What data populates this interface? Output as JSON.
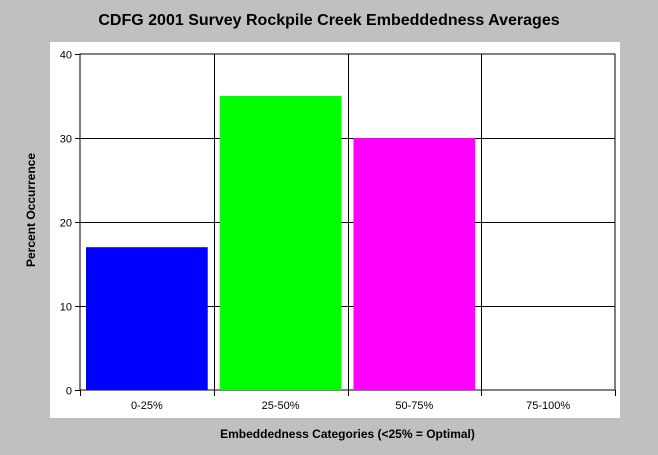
{
  "chart_data": {
    "type": "bar",
    "title": "CDFG 2001 Survey Rockpile Creek Embeddedness Averages",
    "xlabel": "Embeddedness Categories (<25% = Optimal)",
    "ylabel": "Percent Occurrence",
    "categories": [
      "0-25%",
      "25-50%",
      "50-75%",
      "75-100%"
    ],
    "values": [
      17,
      35,
      30,
      0
    ],
    "colors": [
      "#0000ff",
      "#00ff00",
      "#ff00ff",
      "#c0c0c0"
    ],
    "ylim": [
      0,
      40
    ],
    "yticks": [
      0,
      10,
      20,
      30,
      40
    ],
    "grid": true
  }
}
